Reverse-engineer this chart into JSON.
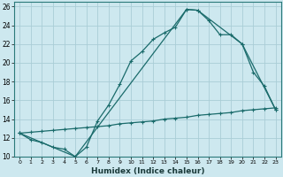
{
  "xlabel": "Humidex (Indice chaleur)",
  "ylabel": "",
  "xlim": [
    -0.5,
    23.5
  ],
  "ylim": [
    10,
    26.5
  ],
  "xticks": [
    0,
    1,
    2,
    3,
    4,
    5,
    6,
    7,
    8,
    9,
    10,
    11,
    12,
    13,
    14,
    15,
    16,
    17,
    18,
    19,
    20,
    21,
    22,
    23
  ],
  "yticks": [
    10,
    12,
    14,
    16,
    18,
    20,
    22,
    24,
    26
  ],
  "background_color": "#cde8ef",
  "grid_color": "#aacdd6",
  "line_color": "#1a6b6b",
  "series1_x": [
    0,
    1,
    2,
    3,
    4,
    5,
    6,
    7,
    8,
    9,
    10,
    11,
    12,
    13,
    14,
    15,
    16,
    17,
    18,
    19,
    20,
    21,
    22,
    23
  ],
  "series1_y": [
    12.5,
    11.8,
    11.5,
    11.0,
    10.8,
    10.0,
    11.0,
    13.8,
    15.5,
    17.7,
    20.2,
    21.2,
    22.5,
    23.2,
    23.8,
    25.7,
    25.6,
    24.5,
    23.0,
    23.0,
    22.0,
    19.0,
    17.5,
    15.0
  ],
  "series2_x": [
    0,
    5,
    15,
    16,
    20,
    23
  ],
  "series2_y": [
    12.5,
    10.0,
    25.7,
    25.6,
    22.0,
    15.0
  ],
  "series3_x": [
    0,
    1,
    2,
    3,
    4,
    5,
    6,
    7,
    8,
    9,
    10,
    11,
    12,
    13,
    14,
    15,
    16,
    17,
    18,
    19,
    20,
    21,
    22,
    23
  ],
  "series3_y": [
    12.5,
    12.6,
    12.7,
    12.8,
    12.9,
    13.0,
    13.1,
    13.2,
    13.3,
    13.5,
    13.6,
    13.7,
    13.8,
    14.0,
    14.1,
    14.2,
    14.4,
    14.5,
    14.6,
    14.7,
    14.9,
    15.0,
    15.1,
    15.2
  ]
}
